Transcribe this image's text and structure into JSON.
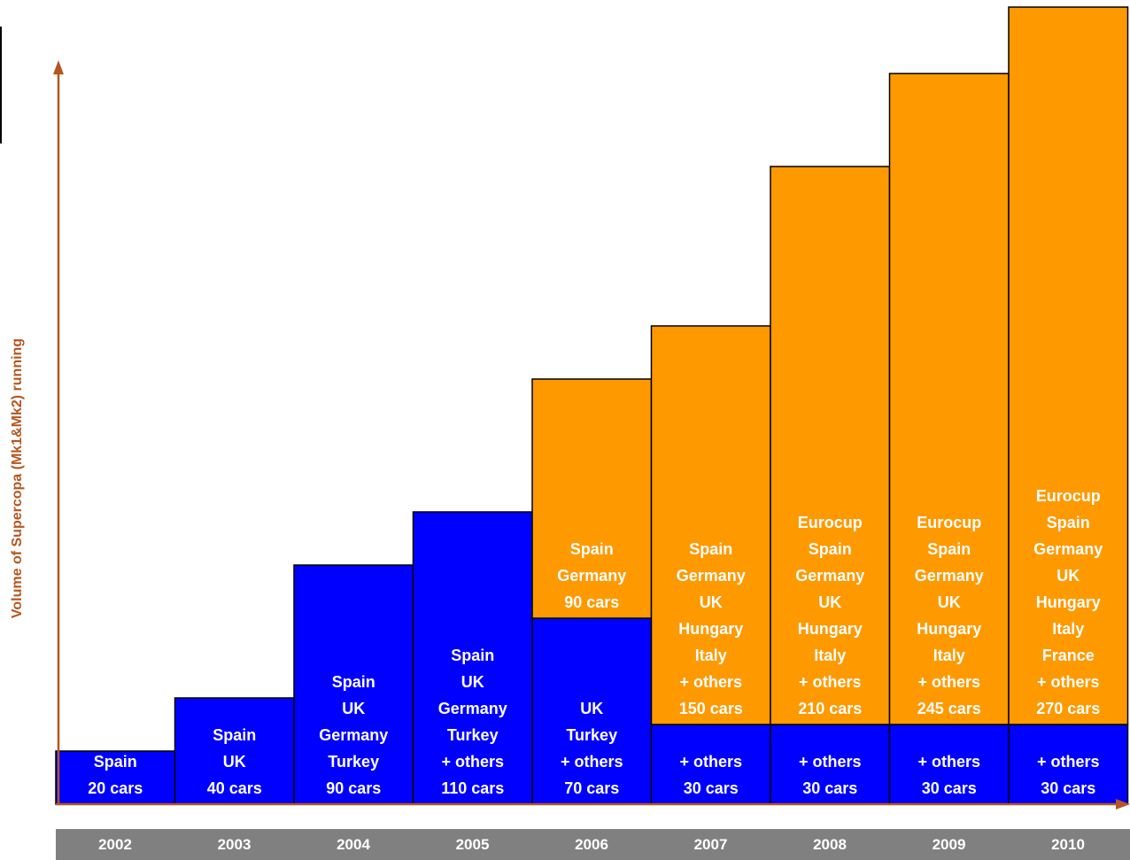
{
  "chart_data": {
    "type": "bar",
    "stacked": true,
    "ylabel": "Volume of Supercopa (Mk1&Mk2) running",
    "categories": [
      "2002",
      "2003",
      "2004",
      "2005",
      "2006",
      "2007",
      "2008",
      "2009",
      "2010"
    ],
    "series": [
      {
        "color": "#0000ff",
        "values": [
          20,
          40,
          90,
          110,
          70,
          30,
          30,
          30,
          30
        ]
      },
      {
        "color": "#ff9900",
        "values": [
          0,
          0,
          0,
          0,
          90,
          150,
          210,
          245,
          270
        ]
      }
    ],
    "labels": {
      "bottom": [
        [
          "Spain",
          "20 cars"
        ],
        [
          "Spain",
          "UK",
          "40 cars"
        ],
        [
          "Spain",
          "UK",
          "Germany",
          "Turkey",
          "90 cars"
        ],
        [
          "Spain",
          "UK",
          "Germany",
          "Turkey",
          "+ others",
          "110 cars"
        ],
        [
          "UK",
          "Turkey",
          "+ others",
          "70 cars"
        ],
        [
          "+ others",
          "30 cars"
        ],
        [
          "+ others",
          "30 cars"
        ],
        [
          "+ others",
          "30 cars"
        ],
        [
          "+ others",
          "30 cars"
        ]
      ],
      "top": [
        [],
        [],
        [],
        [],
        [
          "Spain",
          "Germany",
          "90 cars"
        ],
        [
          "Spain",
          "Germany",
          "UK",
          "Hungary",
          "Italy",
          "+ others",
          "150 cars"
        ],
        [
          "Eurocup",
          "Spain",
          "Germany",
          "UK",
          "Hungary",
          "Italy",
          "+ others",
          "210 cars"
        ],
        [
          "Eurocup",
          "Spain",
          "Germany",
          "UK",
          "Hungary",
          "Italy",
          "+ others",
          "245 cars"
        ],
        [
          "Eurocup",
          "Spain",
          "Germany",
          "UK",
          "Hungary",
          "Italy",
          "France",
          "+ others",
          "270 cars"
        ]
      ]
    },
    "axis_color": "#b4561e",
    "year_band_color": "#808080"
  }
}
